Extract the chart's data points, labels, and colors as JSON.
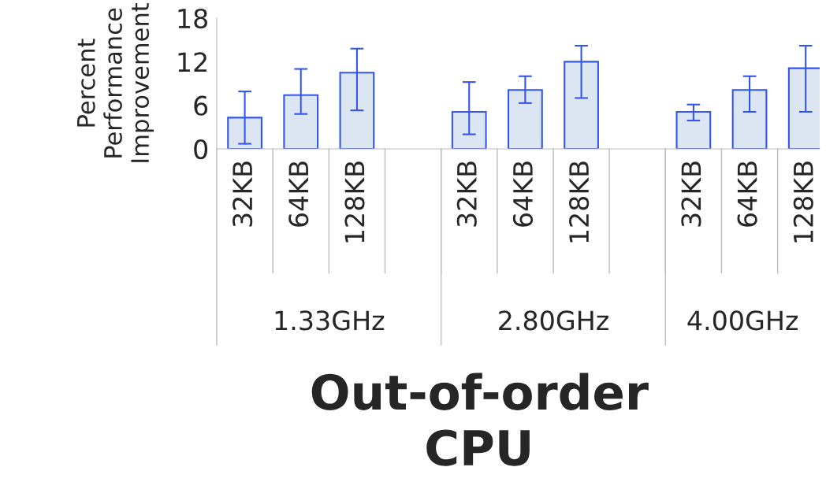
{
  "chart_data": {
    "type": "bar",
    "title": "Out-of-order\nCPU",
    "ylabel": "Percent\nPerformance\nImprovement",
    "categories": [
      "32KB",
      "64KB",
      "128KB",
      null,
      "32KB",
      "64KB",
      "128KB",
      null,
      "32KB",
      "64KB",
      "128KB"
    ],
    "series": [
      {
        "color": "#dce6f2",
        "values": [
          4.3,
          7.4,
          10.5,
          null,
          5.1,
          8.1,
          12.0,
          null,
          5.1,
          8.1,
          11.1
        ],
        "errors": [
          [
            0.7,
            7.9
          ],
          [
            4.8,
            11.0
          ],
          [
            5.3,
            13.8
          ],
          null,
          [
            2.0,
            9.2
          ],
          [
            6.3,
            10.0
          ],
          [
            7.0,
            14.2
          ],
          null,
          [
            3.9,
            6.1
          ],
          [
            5.1,
            10.0
          ],
          [
            5.1,
            14.2
          ]
        ]
      }
    ],
    "ylim": [
      0,
      18
    ],
    "yticks": [
      0,
      6,
      12,
      18
    ],
    "grid": false,
    "legend": false,
    "annotations": [
      "1.33GHz",
      "2.80GHz",
      "4.00GHz"
    ]
  }
}
